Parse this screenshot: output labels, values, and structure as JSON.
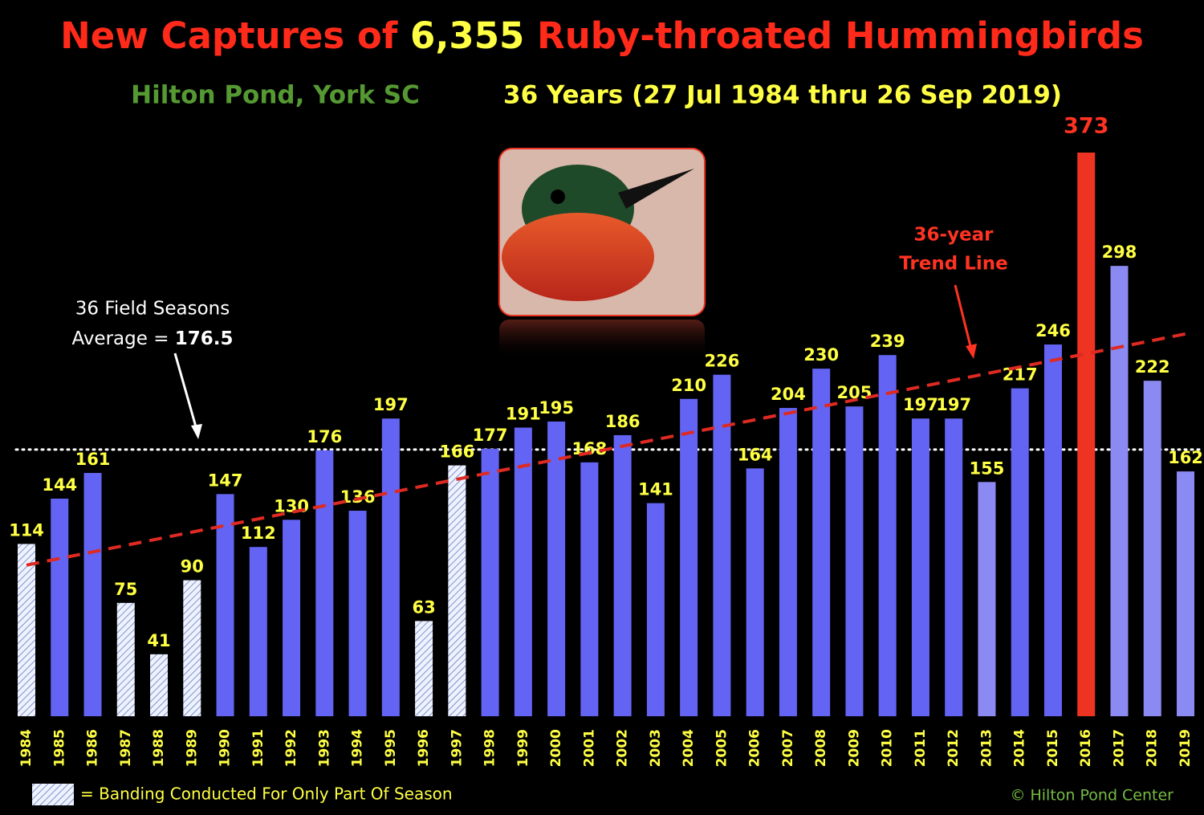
{
  "chart_data": {
    "type": "bar",
    "title_parts": [
      "New Captures of",
      "6,355",
      "Ruby-throated Hummingbirds"
    ],
    "subtitle_left": "Hilton Pond, York SC",
    "subtitle_right": "36 Years (27 Jul 1984 thru 26 Sep 2019)",
    "categories": [
      "1984",
      "1985",
      "1986",
      "1987",
      "1988",
      "1989",
      "1990",
      "1991",
      "1992",
      "1993",
      "1994",
      "1995",
      "1996",
      "1997",
      "1998",
      "1999",
      "2000",
      "2001",
      "2002",
      "2003",
      "2004",
      "2005",
      "2006",
      "2007",
      "2008",
      "2009",
      "2010",
      "2011",
      "2012",
      "2013",
      "2014",
      "2015",
      "2016",
      "2017",
      "2018",
      "2019"
    ],
    "values": [
      114,
      144,
      161,
      75,
      41,
      90,
      147,
      112,
      130,
      176,
      136,
      197,
      63,
      166,
      177,
      191,
      195,
      168,
      186,
      141,
      210,
      226,
      164,
      204,
      230,
      205,
      239,
      197,
      197,
      155,
      217,
      246,
      373,
      298,
      222,
      162
    ],
    "colors": [
      "#dde4ff",
      "#6464f4",
      "#6464f4",
      "#dde4ff",
      "#dde4ff",
      "#dde4ff",
      "#6464f4",
      "#6464f4",
      "#6464f4",
      "#6464f4",
      "#6464f4",
      "#6464f4",
      "#dde4ff",
      "#dde4ff",
      "#6464f4",
      "#6464f4",
      "#6464f4",
      "#6464f4",
      "#6464f4",
      "#6464f4",
      "#6464f4",
      "#6464f4",
      "#6464f4",
      "#6464f4",
      "#6464f4",
      "#6464f4",
      "#6464f4",
      "#6464f4",
      "#6464f4",
      "#8a8af2",
      "#6464f4",
      "#6464f4",
      "#ee3322",
      "#8a8af2",
      "#8a8af2",
      "#8a8af2"
    ],
    "partial_season": [
      true,
      false,
      false,
      true,
      true,
      true,
      false,
      false,
      false,
      false,
      false,
      false,
      true,
      true,
      false,
      false,
      false,
      false,
      false,
      false,
      false,
      false,
      false,
      false,
      false,
      false,
      false,
      false,
      false,
      false,
      false,
      false,
      false,
      false,
      false,
      false
    ],
    "ylim": [
      0,
      400
    ],
    "average": {
      "label": "Average =",
      "value": 176.5
    },
    "average_note": "36 Field Seasons",
    "trend": {
      "start": 100,
      "end": 253
    },
    "trend_note": [
      "36-year",
      "Trend Line"
    ],
    "legend": "= Banding Conducted For Only Part Of Season",
    "credit": "© Hilton Pond Center"
  }
}
